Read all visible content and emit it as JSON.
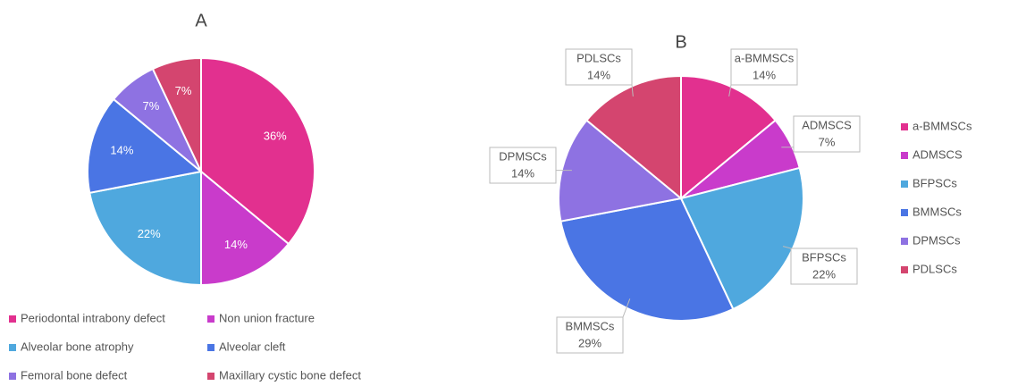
{
  "chart_data": [
    {
      "type": "pie",
      "title": "A",
      "categories": [
        "Periodontal intrabony defect",
        "Non union fracture",
        "Alveolar bone atrophy",
        "Alveolar cleft",
        "Femoral bone defect",
        "Maxillary cystic bone defect"
      ],
      "values": [
        36,
        14,
        22,
        14,
        7,
        7
      ],
      "value_labels": [
        "36%",
        "14%",
        "22%",
        "14%",
        "7%",
        "7%"
      ],
      "colors": [
        "#e2308f",
        "#c93bcb",
        "#4fa8de",
        "#4a75e4",
        "#8e72e2",
        "#d4456f"
      ],
      "legend": "bottom",
      "data_labels": "inside"
    },
    {
      "type": "pie",
      "title": "B",
      "categories": [
        "a-BMMSCs",
        "ADMSCS",
        "BFPSCs",
        "BMMSCs",
        "DPMSCs",
        "PDLSCs"
      ],
      "values": [
        14,
        7,
        22,
        29,
        14,
        14
      ],
      "value_labels": [
        "14%",
        "7%",
        "22%",
        "29%",
        "14%",
        "14%"
      ],
      "colors": [
        "#e2308f",
        "#c93bcb",
        "#4fa8de",
        "#4a75e4",
        "#8e72e2",
        "#d4456f"
      ],
      "legend": "right",
      "data_labels": "callout"
    }
  ]
}
